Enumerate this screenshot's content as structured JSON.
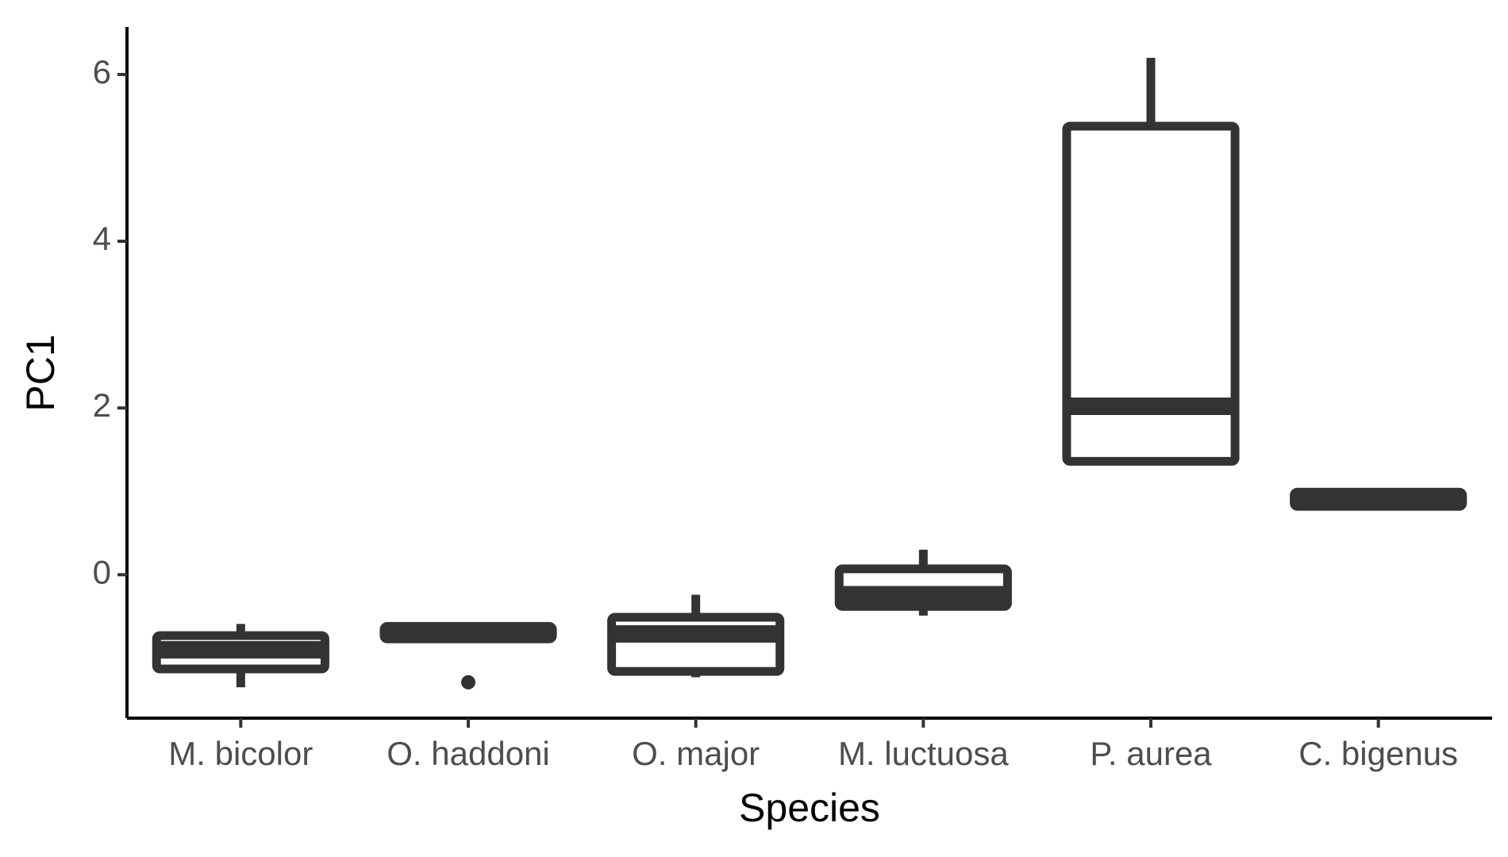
{
  "chart_data": {
    "type": "box",
    "x_label": "Species",
    "y_label": "PC1",
    "categories": [
      "M. bicolor",
      "O. haddoni",
      "O. major",
      "M. luctuosa",
      "P. aurea",
      "C. bigenus"
    ],
    "boxes": [
      {
        "min": -1.35,
        "q1": -1.13,
        "median": -0.9,
        "q3": -0.73,
        "max": -0.59
      },
      {
        "min": -0.77,
        "q1": -0.77,
        "median": -0.71,
        "q3": -0.62,
        "max": -0.57,
        "outliers": [
          -1.29
        ]
      },
      {
        "min": -1.23,
        "q1": -1.16,
        "median": -0.71,
        "q3": -0.51,
        "max": -0.24
      },
      {
        "min": -0.49,
        "q1": -0.38,
        "median": -0.24,
        "q3": 0.07,
        "max": 0.3
      },
      {
        "min": 1.36,
        "q1": 1.36,
        "median": 2.02,
        "q3": 5.38,
        "max": 6.2
      },
      {
        "min": 0.82,
        "q1": 0.82,
        "median": 0.9,
        "q3": 0.99,
        "max": 0.99
      }
    ],
    "color": "#333333",
    "ylim": [
      -1.72,
      6.57
    ],
    "yticks": [
      0,
      2,
      4,
      6
    ]
  }
}
